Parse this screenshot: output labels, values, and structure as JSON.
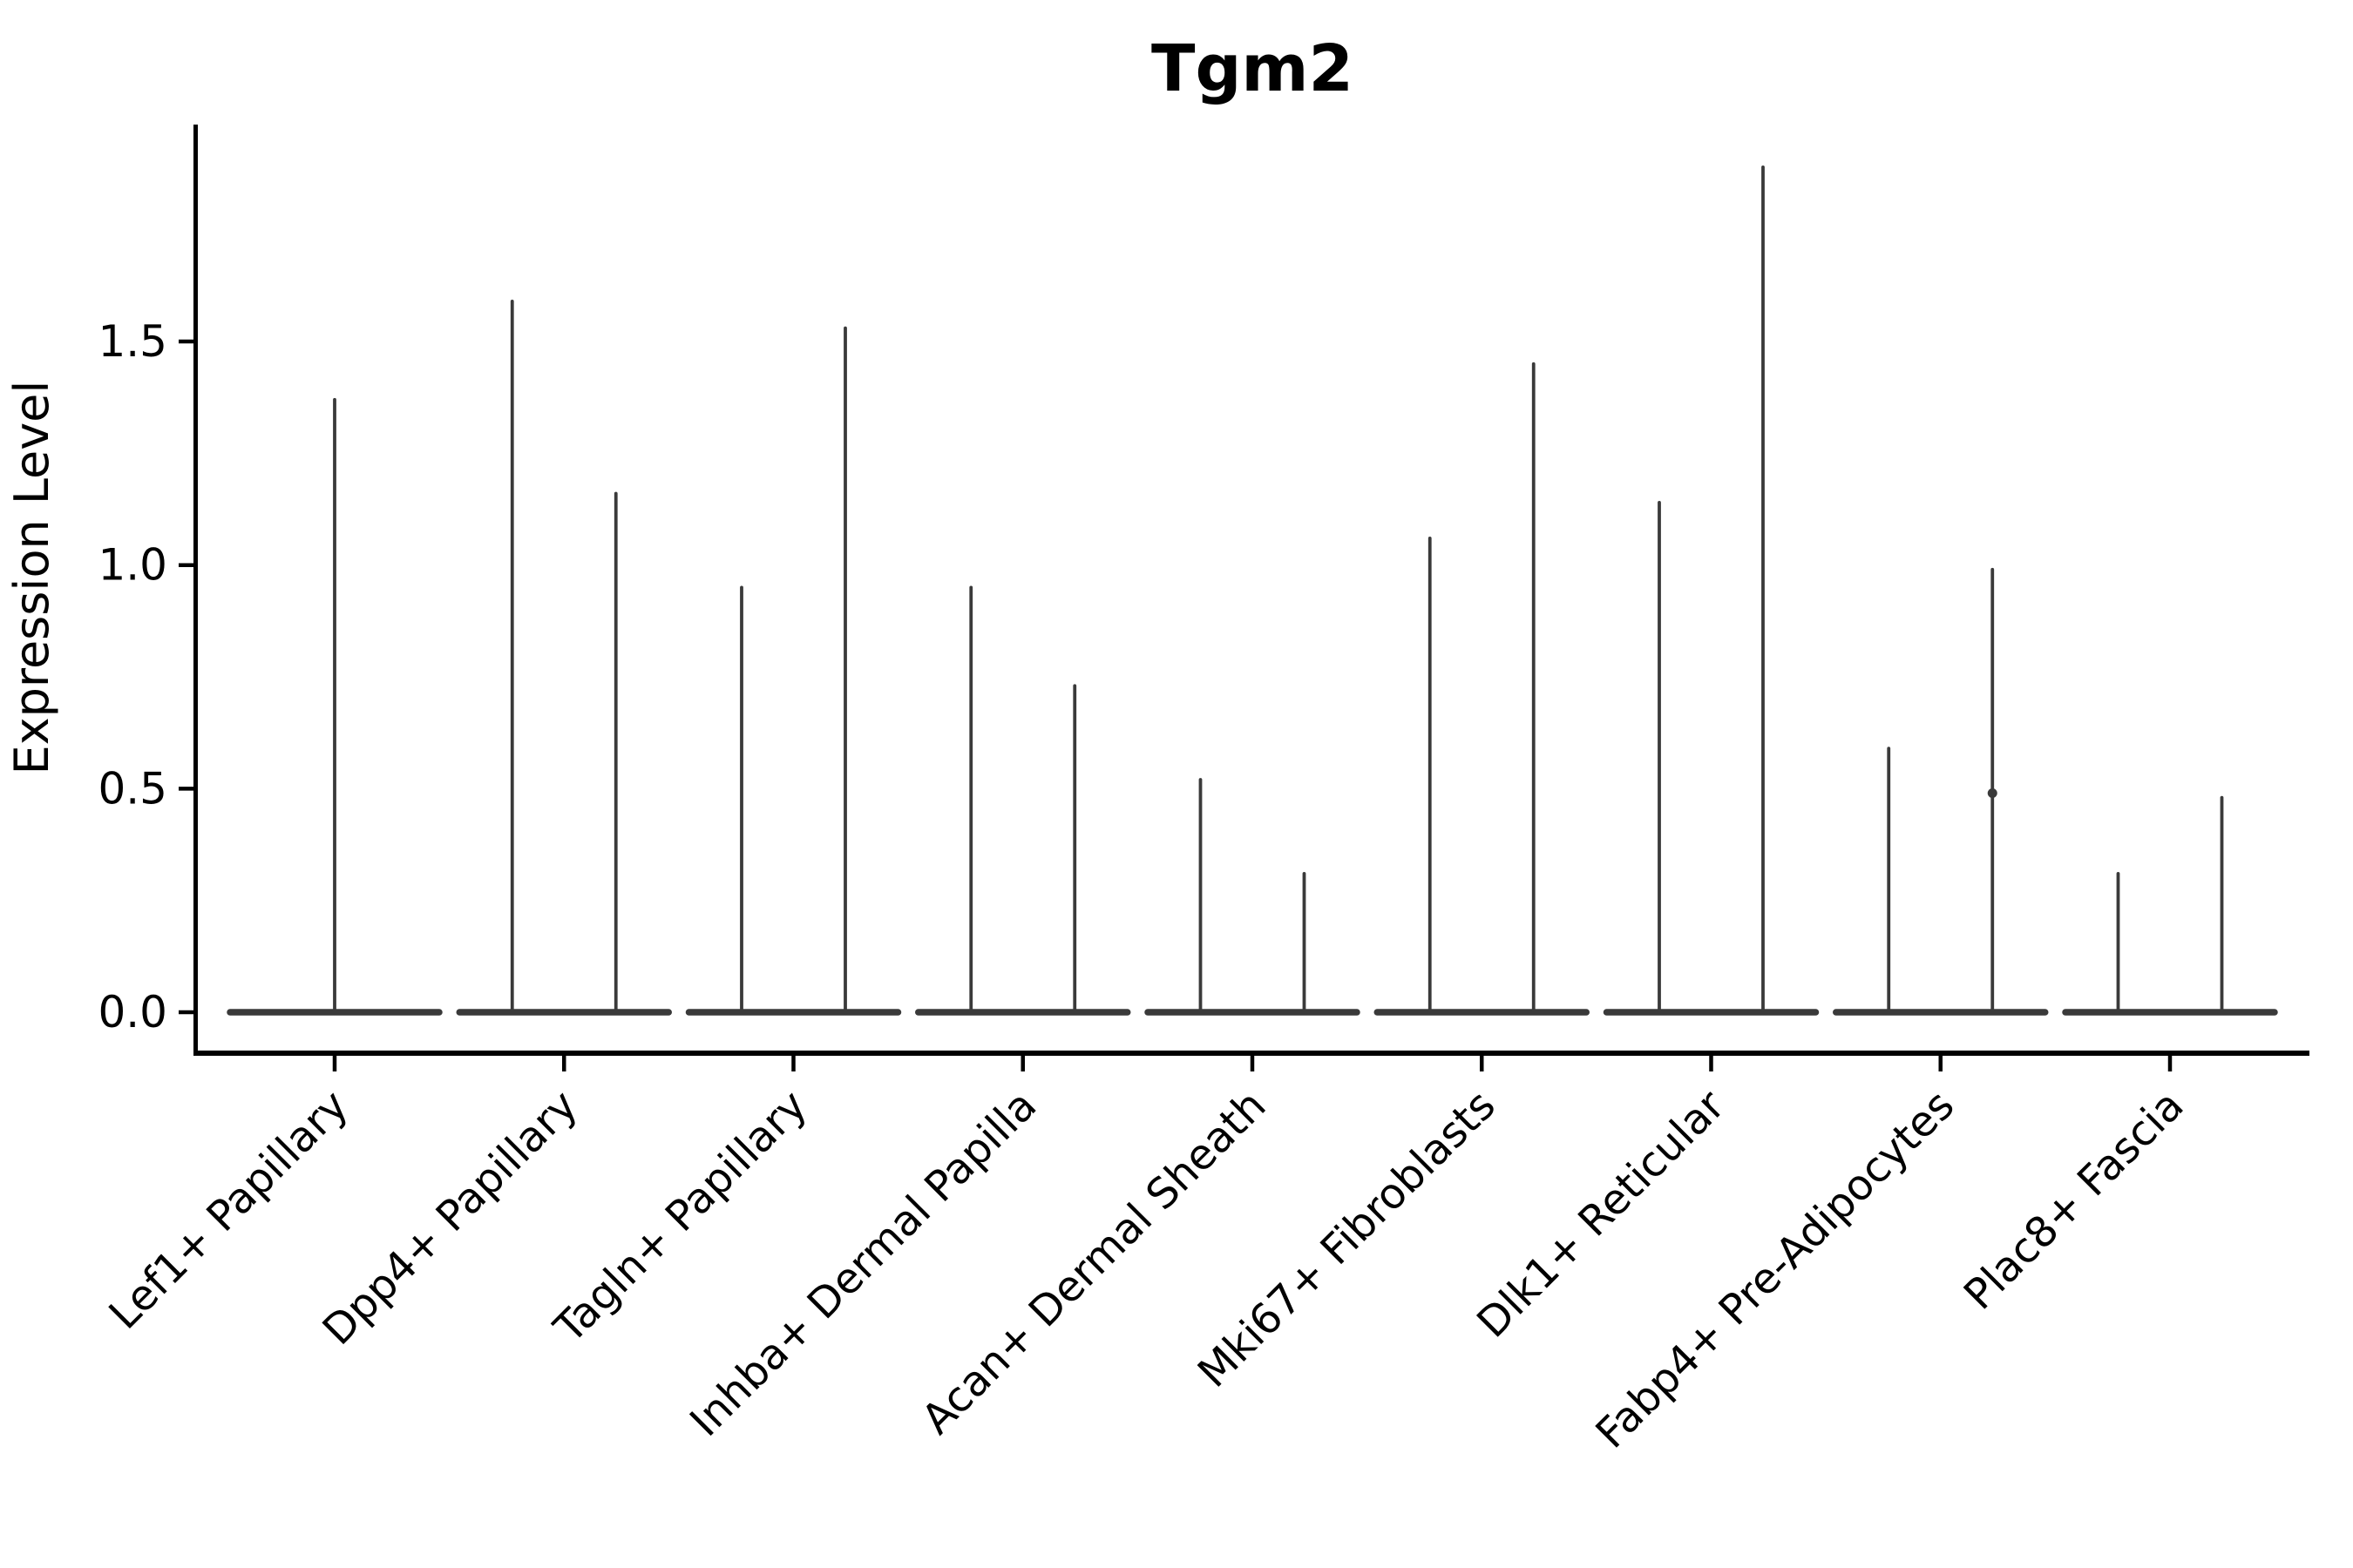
{
  "title": "Tgm2",
  "y_axis_label": "Expression Level",
  "chart_data": {
    "type": "violin",
    "title": "Tgm2",
    "xlabel": "",
    "ylabel": "Expression Level",
    "ylim": [
      -0.09,
      1.98
    ],
    "yticks": [
      0,
      0.5,
      1.0,
      1.5
    ],
    "ytick_labels": [
      "0.0",
      "0.5",
      "1.0",
      "1.5"
    ],
    "grid": false,
    "legend_position": "none",
    "categories": [
      "Lef1+ Papillary",
      "Dpp4+ Papillary",
      "Tagln+ Papillary",
      "Inhba+ Dermal Papilla",
      "Acan+ Dermal Sheath",
      "Mki67+ Fibroblasts",
      "Dlk1+ Reticular",
      "Fabp4+ Pre-Adipocytes",
      "Plac8+ Fascia"
    ],
    "violin_style": "density collapsed at 0 (wide flat base) with a thin spike up to the maximum expression value; two violins per category except the first which has one centered violin",
    "series": [
      {
        "name": "violin-left",
        "max_values": [
          1.37,
          1.59,
          0.95,
          0.95,
          0.52,
          1.06,
          1.14,
          0.59,
          0.31
        ]
      },
      {
        "name": "violin-right",
        "max_values": [
          null,
          1.16,
          1.53,
          0.73,
          0.31,
          1.45,
          1.89,
          0.99,
          0.48
        ]
      }
    ],
    "baseline_value": 0,
    "dots": [
      {
        "category_index": 7,
        "series_index": 1,
        "value": 0.49
      }
    ],
    "colors": {
      "violin": "#3A3A3A",
      "axis": "#000000",
      "text": "#000000",
      "background": "#FFFFFF"
    }
  }
}
